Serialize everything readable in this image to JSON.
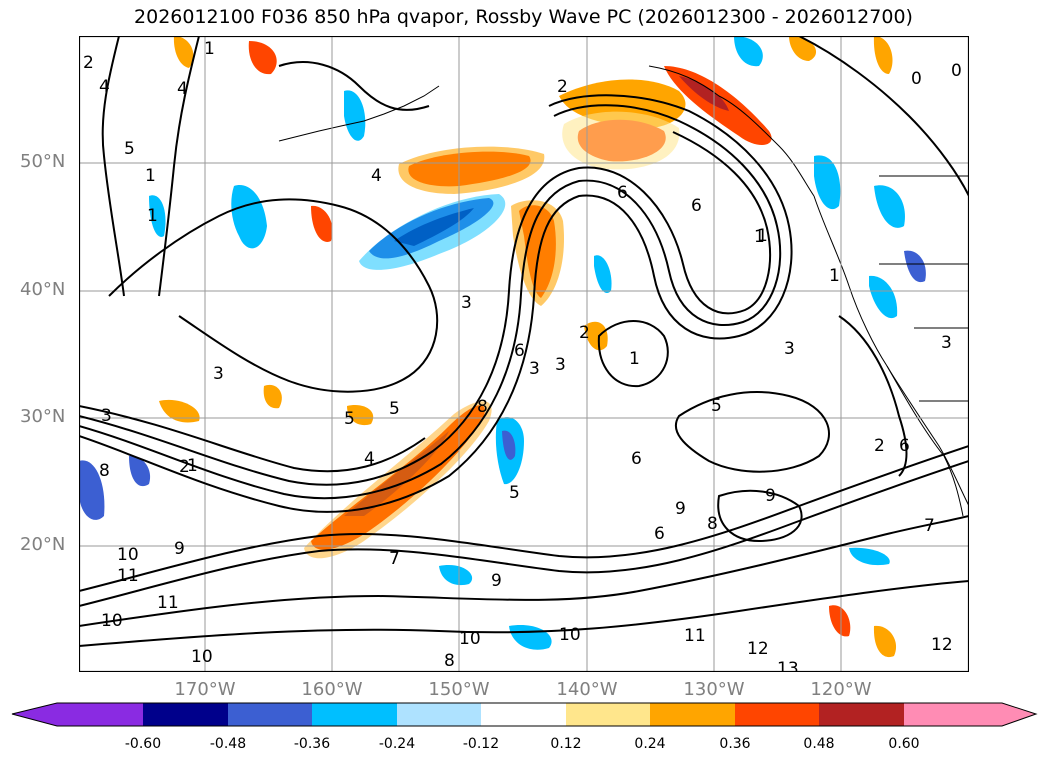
{
  "title": "2026012100 F036 850 hPa qvapor, Rossby Wave PC (2026012300 - 2026012700)",
  "lat_labels": [
    "50°N",
    "40°N",
    "30°N",
    "20°N"
  ],
  "lon_labels": [
    "170°W",
    "160°W",
    "150°W",
    "140°W",
    "130°W",
    "120°W"
  ],
  "colorbar": {
    "colors": [
      "#8a2be2",
      "#00008b",
      "#3c5fd2",
      "#00bfff",
      "#aee2ff",
      "#ffffff",
      "#ffe68c",
      "#ffa500",
      "#ff4500",
      "#b22222",
      "#ff8cb4"
    ],
    "ticks": [
      "-0.60",
      "-0.48",
      "-0.36",
      "-0.24",
      "-0.12",
      "0.12",
      "0.24",
      "0.36",
      "0.48",
      "0.60"
    ]
  },
  "contour_labels": [
    "2",
    "4",
    "1",
    "5",
    "1",
    "1",
    "4",
    "2",
    "6",
    "6",
    "1",
    "4",
    "3",
    "2",
    "1",
    "3",
    "3",
    "3",
    "3",
    "5",
    "5",
    "4",
    "8",
    "6",
    "5",
    "3",
    "2",
    "7",
    "8",
    "9",
    "6",
    "9",
    "10",
    "9",
    "11",
    "9",
    "11",
    "10",
    "10",
    "10",
    "8",
    "10",
    "11",
    "12",
    "13",
    "12",
    "8",
    "7",
    "1",
    "1",
    "6",
    "3",
    "2",
    "6",
    "5",
    "1",
    "0",
    "0"
  ]
}
